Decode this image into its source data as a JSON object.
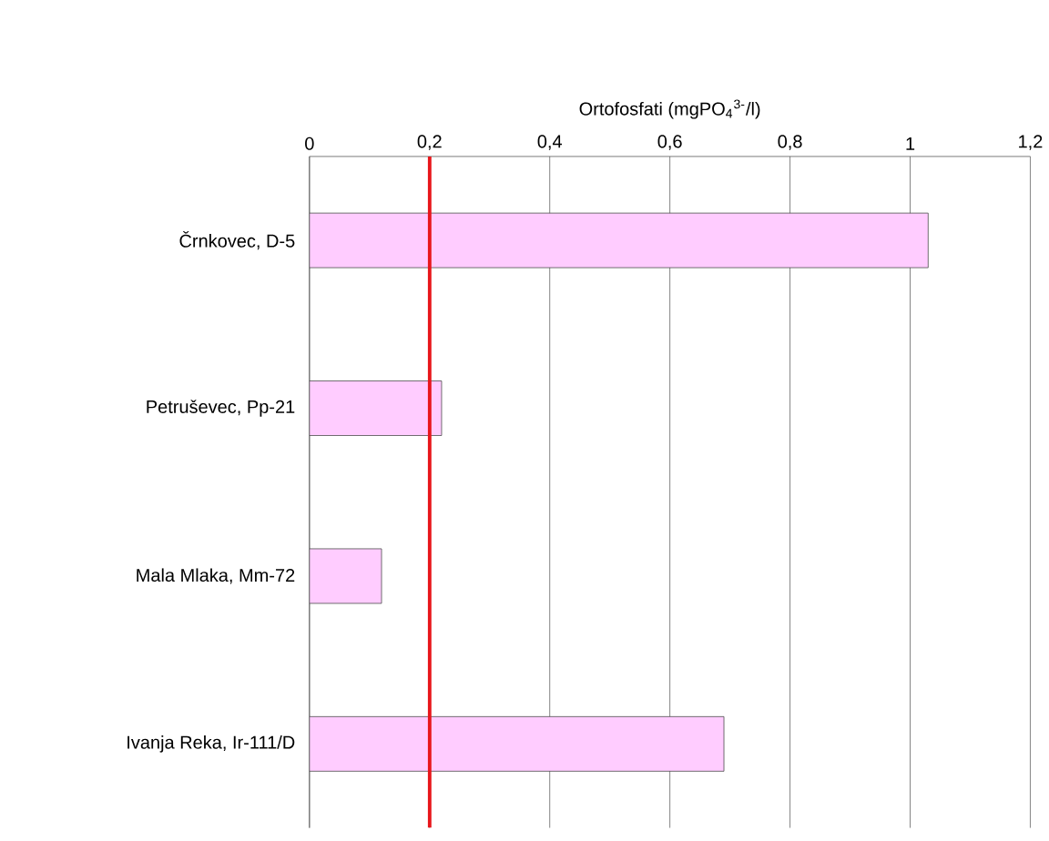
{
  "chart_data": {
    "type": "bar",
    "orientation": "horizontal",
    "xlabel": "Ortofosfati (mgPO$_{4}$$^{3-}$/l)",
    "categories": [
      "Črnkovec, D-5",
      "Petruševec,  Pp-21",
      "Mala Mlaka,  Mm-72",
      "Ivanja Reka,  Ir-111/D"
    ],
    "values": [
      1.03,
      0.22,
      0.12,
      0.69
    ],
    "color": "#ffccff",
    "xlim": [
      0,
      1.2
    ],
    "xticks": [
      0,
      {
        "value": 0.2,
        "label": "0,2"
      },
      {
        "value": 0.4,
        "label": "0,4"
      },
      {
        "value": 0.6,
        "label": "0,6"
      },
      {
        "value": 0.8,
        "label": "0,8"
      },
      1,
      {
        "value": 1.2,
        "label": "1,2"
      }
    ],
    "grid": "x",
    "ref_lines": [
      {
        "axis": "x",
        "value": 0.2,
        "color": "#e8161b"
      }
    ]
  }
}
